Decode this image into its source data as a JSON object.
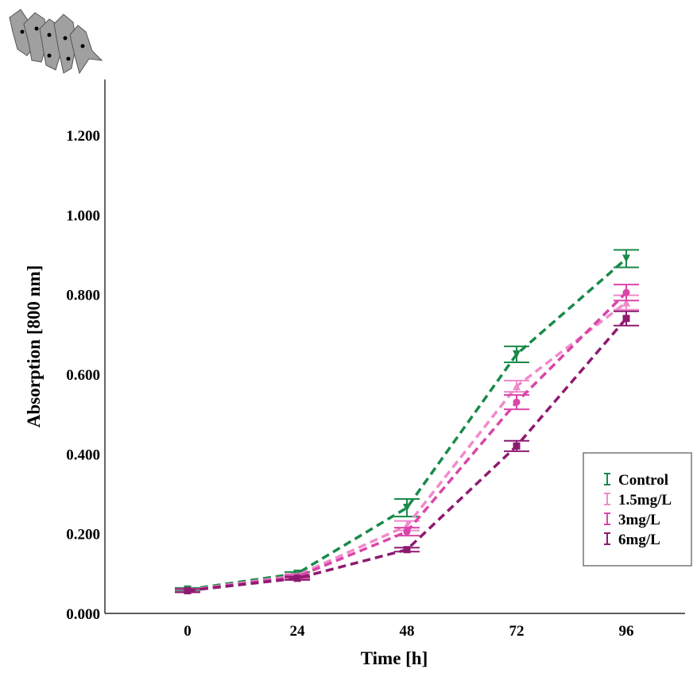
{
  "chart_data": {
    "type": "line",
    "xlabel": "Time [h]",
    "ylabel": "Absorption [800 nm]",
    "categories": [
      "0",
      "24",
      "48",
      "72",
      "96"
    ],
    "x": [
      0,
      24,
      48,
      72,
      96
    ],
    "ylim": [
      0,
      1.2
    ],
    "yticks": [
      "0.000",
      "0.200",
      "0.400",
      "0.600",
      "0.800",
      "1.000",
      "1.200"
    ],
    "grid": false,
    "legend_position": "bottom-right",
    "series": [
      {
        "name": "Control",
        "color": "#1a8a4a",
        "marker": "triangle-down",
        "values": [
          0.06,
          0.1,
          0.265,
          0.65,
          0.89
        ],
        "errors": [
          0.004,
          0.004,
          0.022,
          0.02,
          0.022
        ]
      },
      {
        "name": "1.5mg/L",
        "color": "#f08acb",
        "marker": "triangle-up",
        "values": [
          0.058,
          0.095,
          0.22,
          0.57,
          0.78
        ],
        "errors": [
          0.004,
          0.004,
          0.012,
          0.014,
          0.018
        ]
      },
      {
        "name": "3mg/L",
        "color": "#d946a8",
        "marker": "circle",
        "values": [
          0.057,
          0.092,
          0.205,
          0.53,
          0.805
        ],
        "errors": [
          0.004,
          0.004,
          0.01,
          0.018,
          0.02
        ]
      },
      {
        "name": "6mg/L",
        "color": "#8e1a70",
        "marker": "square",
        "values": [
          0.057,
          0.088,
          0.16,
          0.42,
          0.74
        ],
        "errors": [
          0.004,
          0.004,
          0.005,
          0.013,
          0.018
        ]
      }
    ]
  },
  "cell_icon": {
    "name": "cell-cluster-icon",
    "color": "#a0a0a0"
  }
}
